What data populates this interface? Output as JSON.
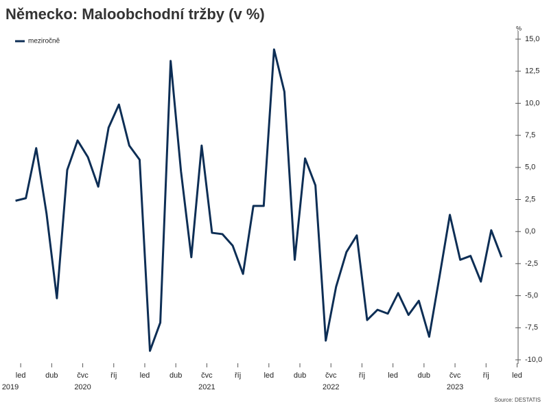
{
  "chart_data": {
    "type": "line",
    "title": "Německo: Maloobchodní tržby (v %)",
    "y_unit": "%",
    "source": "Source: DESTATIS",
    "legend": "top-left",
    "x": [
      0,
      1,
      2,
      3,
      4,
      5,
      6,
      7,
      8,
      9,
      10,
      11,
      12,
      13,
      14,
      15,
      16,
      17,
      18,
      19,
      20,
      21,
      22,
      23,
      24,
      25,
      26,
      27,
      28,
      29,
      30,
      31,
      32,
      33,
      34,
      35,
      36,
      37,
      38,
      39,
      40,
      41,
      42,
      43,
      44,
      45,
      46,
      47
    ],
    "series": [
      {
        "name": "meziročně",
        "color": "#0d2e55",
        "values": [
          2.4,
          2.6,
          6.5,
          1.4,
          -5.2,
          4.8,
          7.1,
          5.8,
          3.5,
          8.1,
          9.9,
          6.7,
          5.6,
          -9.3,
          -7.1,
          13.3,
          4.7,
          -2.0,
          6.7,
          -0.1,
          -0.2,
          -1.1,
          -3.3,
          2.0,
          2.0,
          14.2,
          10.9,
          -2.2,
          5.7,
          3.6,
          -8.5,
          -4.3,
          -1.6,
          -0.3,
          -6.9,
          -6.1,
          -6.4,
          -4.8,
          -6.5,
          -5.4,
          -8.2,
          -3.5,
          1.3,
          -2.2,
          -1.9,
          -3.9,
          0.1,
          -2.0
        ]
      }
    ],
    "xlim": [
      -1.5,
      48.6
    ],
    "xticks": [
      {
        "value": 0.5,
        "label": "led"
      },
      {
        "value": 3.5,
        "label": "dub"
      },
      {
        "value": 6.5,
        "label": "čvc"
      },
      {
        "value": 9.5,
        "label": "říj"
      },
      {
        "value": 12.5,
        "label": "led"
      },
      {
        "value": 15.5,
        "label": "dub"
      },
      {
        "value": 18.5,
        "label": "čvc"
      },
      {
        "value": 21.5,
        "label": "říj"
      },
      {
        "value": 24.5,
        "label": "led"
      },
      {
        "value": 27.5,
        "label": "dub"
      },
      {
        "value": 30.5,
        "label": "čvc"
      },
      {
        "value": 33.5,
        "label": "říj"
      },
      {
        "value": 36.5,
        "label": "led"
      },
      {
        "value": 39.5,
        "label": "dub"
      },
      {
        "value": 42.5,
        "label": "čvc"
      },
      {
        "value": 45.5,
        "label": "říj"
      },
      {
        "value": 48.5,
        "label": "led"
      }
    ],
    "x_year_labels": [
      {
        "value": -0.5,
        "label": "2019"
      },
      {
        "value": 6.5,
        "label": "2020"
      },
      {
        "value": 18.5,
        "label": "2021"
      },
      {
        "value": 30.5,
        "label": "2022"
      },
      {
        "value": 42.5,
        "label": "2023"
      }
    ],
    "ylim": [
      -10,
      15
    ],
    "yticks": [
      {
        "value": 15,
        "label": "15,0"
      },
      {
        "value": 12.5,
        "label": "12,5"
      },
      {
        "value": 10,
        "label": "10,0"
      },
      {
        "value": 7.5,
        "label": "7,5"
      },
      {
        "value": 5,
        "label": "5,0"
      },
      {
        "value": 2.5,
        "label": "2,5"
      },
      {
        "value": 0,
        "label": "0,0"
      },
      {
        "value": -2.5,
        "label": "-2,5"
      },
      {
        "value": -5,
        "label": "-5,0"
      },
      {
        "value": -7.5,
        "label": "-7,5"
      },
      {
        "value": -10,
        "label": "-10,0"
      }
    ],
    "grid": false
  }
}
